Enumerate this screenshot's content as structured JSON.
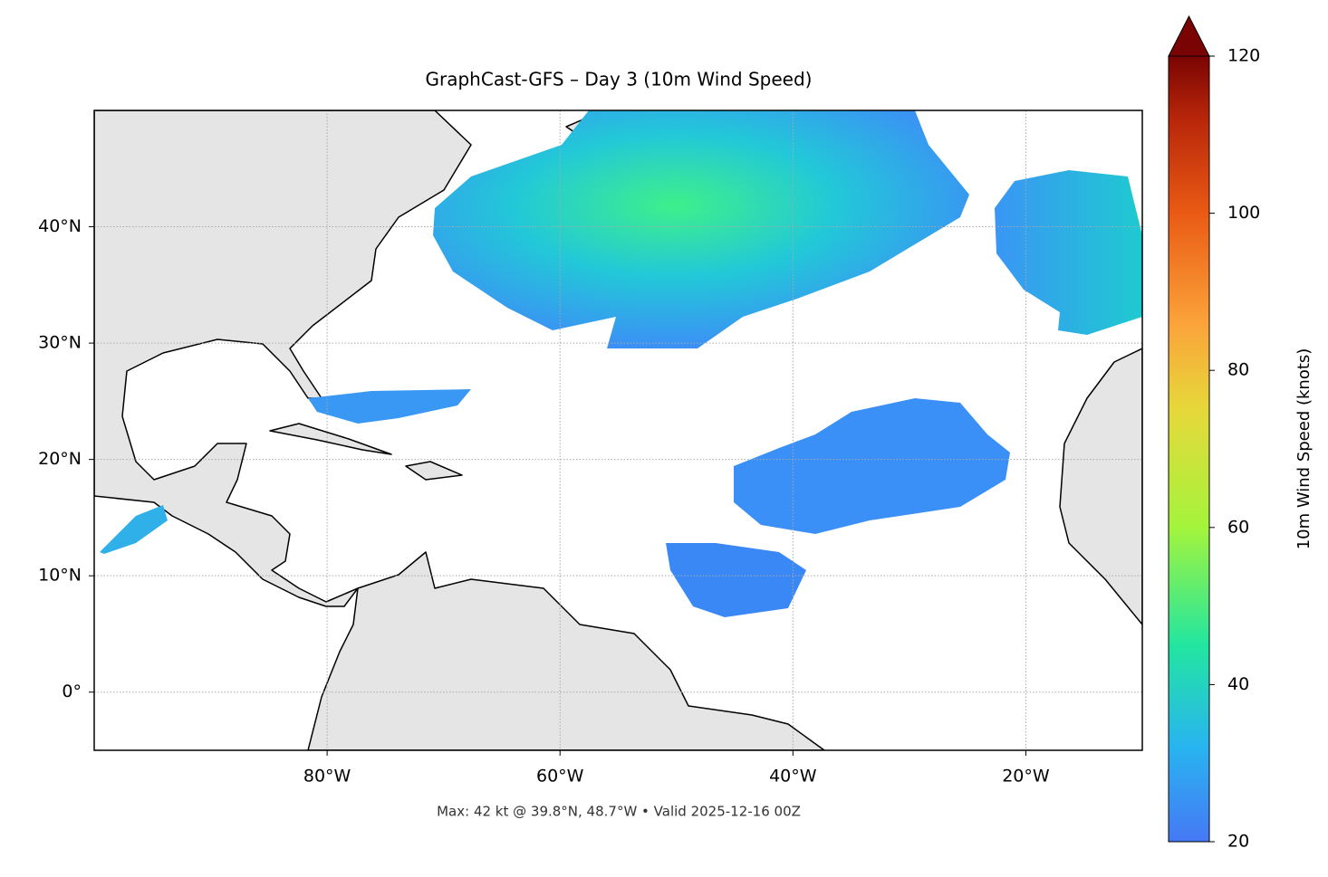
{
  "title": "GraphCast-GFS – Day 3 (10m Wind Speed)",
  "footer": "Max: 42 kt @ 39.8°N, 48.7°W • Valid 2025-12-16 00Z",
  "map": {
    "lonlim": [
      -100,
      -10
    ],
    "latlim": [
      -5,
      50
    ],
    "grid": true,
    "lonticks": [
      {
        "value": -80,
        "label": "80°W"
      },
      {
        "value": -60,
        "label": "60°W"
      },
      {
        "value": -40,
        "label": "40°W"
      },
      {
        "value": -20,
        "label": "20°W"
      }
    ],
    "latticks": [
      {
        "value": 0,
        "label": "0°"
      },
      {
        "value": 10,
        "label": "10°N"
      },
      {
        "value": 20,
        "label": "20°N"
      },
      {
        "value": 30,
        "label": "30°N"
      },
      {
        "value": 40,
        "label": "40°N"
      }
    ]
  },
  "colorbar": {
    "label": "10m Wind Speed (knots)",
    "lim": [
      20,
      120
    ],
    "ticks": [
      20,
      40,
      60,
      80,
      100,
      120
    ],
    "extend": "max"
  }
}
